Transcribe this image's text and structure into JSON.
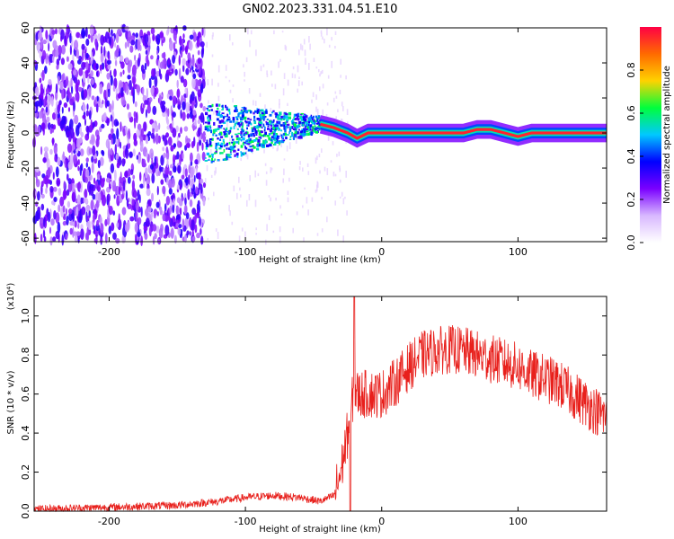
{
  "title": "GN02.2023.331.04.51.E10",
  "chart_data": [
    {
      "type": "heatmap",
      "xlabel": "Height of straight line (km)",
      "ylabel": "Frequency (Hz)",
      "xlim": [
        -255,
        165
      ],
      "ylim": [
        -62,
        60
      ],
      "xticks": [
        -200,
        -100,
        0,
        100
      ],
      "yticks": [
        -60,
        -40,
        -20,
        0,
        20,
        40,
        60
      ],
      "colorbar": {
        "label": "Normalized spectral amplitude",
        "range": [
          0,
          1
        ],
        "ticks": [
          "0.0",
          "0.2",
          "0.4",
          "0.6",
          "0.8"
        ],
        "colors": [
          "#ffffff",
          "#d8b8ff",
          "#7a00ff",
          "#0000ff",
          "#00c8ff",
          "#00ff3c",
          "#ffd200",
          "#ff6a00",
          "#ff0044"
        ]
      },
      "features": {
        "noise_region_x": [
          -255,
          -130
        ],
        "transition_region_x": [
          -130,
          -45
        ],
        "tone_line": [
          {
            "x": -45,
            "f": 5
          },
          {
            "x": -35,
            "f": 3
          },
          {
            "x": -25,
            "f": 0
          },
          {
            "x": -18,
            "f": -3
          },
          {
            "x": -10,
            "f": 0
          },
          {
            "x": 60,
            "f": 0
          },
          {
            "x": 70,
            "f": 2
          },
          {
            "x": 80,
            "f": 2
          },
          {
            "x": 90,
            "f": 0
          },
          {
            "x": 100,
            "f": -2
          },
          {
            "x": 110,
            "f": 0
          },
          {
            "x": 165,
            "f": 0
          }
        ]
      }
    },
    {
      "type": "line",
      "xlabel": "Height of straight line (km)",
      "ylabel": "SNR (10 * v/v)",
      "y_multiplier": "(x10⁴)",
      "xlim": [
        -255,
        165
      ],
      "ylim": [
        0,
        1.1
      ],
      "xticks": [
        -200,
        -100,
        0,
        100
      ],
      "yticks": [
        "0.0",
        "0.2",
        "0.4",
        "0.6",
        "0.8",
        "1.0"
      ],
      "color": "#e8201c",
      "series": [
        {
          "x": [
            -255,
            -200,
            -150,
            -120,
            -100,
            -80,
            -60,
            -45,
            -35,
            -30,
            -25,
            -22,
            -20,
            -18,
            -15,
            -10,
            0,
            10,
            20,
            30,
            40,
            50,
            60,
            70,
            80,
            90,
            100,
            110,
            120,
            130,
            140,
            150,
            160,
            165
          ],
          "values": [
            0.01,
            0.02,
            0.03,
            0.05,
            0.07,
            0.08,
            0.07,
            0.05,
            0.08,
            0.2,
            0.4,
            0.55,
            0.62,
            0.6,
            0.6,
            0.6,
            0.6,
            0.66,
            0.74,
            0.8,
            0.82,
            0.83,
            0.82,
            0.8,
            0.78,
            0.76,
            0.74,
            0.7,
            0.68,
            0.65,
            0.6,
            0.55,
            0.5,
            0.48
          ]
        }
      ],
      "spikes": [
        {
          "x": -20,
          "y": 1.1
        },
        {
          "x": -23,
          "y": 0.0
        }
      ]
    }
  ]
}
